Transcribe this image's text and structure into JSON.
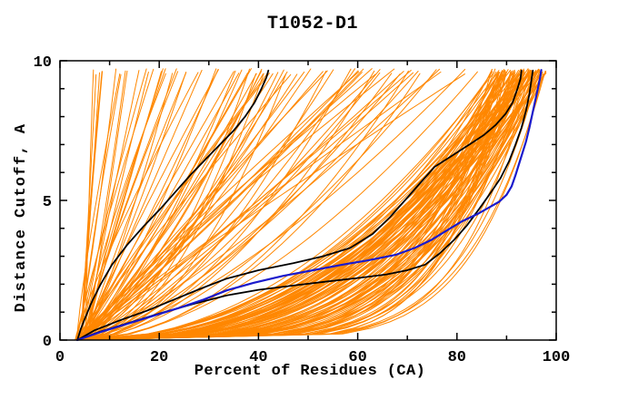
{
  "title": "T1052-D1",
  "chart_data": {
    "type": "line",
    "title": "T1052-D1",
    "xlabel": "Percent of Residues (CA)",
    "ylabel": "Distance Cutoff, A",
    "xlim": [
      0,
      100
    ],
    "ylim": [
      0,
      10
    ],
    "x_major_ticks": [
      0,
      20,
      40,
      60,
      80,
      100
    ],
    "x_minor_step": 10,
    "y_major_ticks": [
      0,
      5,
      10
    ],
    "y_minor_step": 1,
    "grid": false,
    "legend": "none",
    "colors": {
      "ensemble": "#ff8700",
      "highlight": "#000000",
      "best": "#1a1acc"
    },
    "series": [
      {
        "name": "model-ensemble",
        "kind": "ensemble",
        "color": "#ff8700",
        "width": 1,
        "count": 190,
        "seed": 11,
        "x_start_range": [
          3.0,
          5.5
        ],
        "y_top_range": [
          9.5,
          9.72
        ],
        "classes": [
          {
            "frac": 0.13,
            "x_end": [
              6.5,
              32
            ],
            "p": [
              0.75,
              1.3
            ]
          },
          {
            "frac": 0.24,
            "x_end": [
              35,
              85
            ],
            "p": [
              0.5,
              1.1
            ]
          },
          {
            "frac": 0.63,
            "x_end": [
              87,
              98
            ],
            "p": [
              0.14,
              0.5
            ]
          }
        ]
      },
      {
        "name": "black-model-1",
        "kind": "curve",
        "color": "#000000",
        "width": 1.8,
        "points": [
          [
            3.5,
            0
          ],
          [
            4.2,
            0.4
          ],
          [
            5.2,
            0.85
          ],
          [
            6.5,
            1.4
          ],
          [
            8.2,
            2.0
          ],
          [
            10.5,
            2.7
          ],
          [
            13.5,
            3.4
          ],
          [
            17,
            4.1
          ],
          [
            20.5,
            4.75
          ],
          [
            23.5,
            5.35
          ],
          [
            26.5,
            5.95
          ],
          [
            29.5,
            6.5
          ],
          [
            32.5,
            7.05
          ],
          [
            35,
            7.5
          ],
          [
            37.3,
            8.0
          ],
          [
            39.2,
            8.5
          ],
          [
            40.6,
            9.0
          ],
          [
            41.6,
            9.4
          ],
          [
            42,
            9.65
          ]
        ]
      },
      {
        "name": "black-model-2",
        "kind": "curve",
        "color": "#000000",
        "width": 1.8,
        "points": [
          [
            3.5,
            0
          ],
          [
            7,
            0.35
          ],
          [
            12,
            0.7
          ],
          [
            17.5,
            1.05
          ],
          [
            23,
            1.45
          ],
          [
            28.5,
            1.85
          ],
          [
            33.6,
            2.2
          ],
          [
            40,
            2.5
          ],
          [
            47,
            2.75
          ],
          [
            53,
            3.0
          ],
          [
            58.5,
            3.3
          ],
          [
            63,
            3.8
          ],
          [
            66.5,
            4.4
          ],
          [
            69.5,
            5.0
          ],
          [
            72.5,
            5.6
          ],
          [
            75.5,
            6.2
          ],
          [
            79,
            6.6
          ],
          [
            82.5,
            7.0
          ],
          [
            85.5,
            7.35
          ],
          [
            87.8,
            7.7
          ],
          [
            89.8,
            8.1
          ],
          [
            91.2,
            8.5
          ],
          [
            92.2,
            9.0
          ],
          [
            92.8,
            9.35
          ],
          [
            93,
            9.65
          ]
        ]
      },
      {
        "name": "black-model-3",
        "kind": "curve",
        "color": "#000000",
        "width": 1.8,
        "points": [
          [
            3.5,
            0
          ],
          [
            8,
            0.3
          ],
          [
            14,
            0.62
          ],
          [
            20,
            0.95
          ],
          [
            27,
            1.3
          ],
          [
            33.6,
            1.6
          ],
          [
            40,
            1.8
          ],
          [
            47,
            1.95
          ],
          [
            54,
            2.1
          ],
          [
            60,
            2.22
          ],
          [
            65.8,
            2.35
          ],
          [
            70,
            2.5
          ],
          [
            73.6,
            2.7
          ],
          [
            76.5,
            3.1
          ],
          [
            79.5,
            3.6
          ],
          [
            82,
            4.1
          ],
          [
            84.5,
            4.7
          ],
          [
            86.5,
            5.2
          ],
          [
            88.8,
            5.8
          ],
          [
            90.5,
            6.4
          ],
          [
            91.8,
            7.0
          ],
          [
            93,
            7.6
          ],
          [
            93.9,
            8.2
          ],
          [
            94.6,
            8.8
          ],
          [
            95,
            9.3
          ],
          [
            95.3,
            9.65
          ]
        ]
      },
      {
        "name": "blue-model",
        "kind": "curve",
        "color": "#1a1acc",
        "width": 2.2,
        "points": [
          [
            3.5,
            0
          ],
          [
            8,
            0.28
          ],
          [
            13,
            0.55
          ],
          [
            18.5,
            0.85
          ],
          [
            24,
            1.15
          ],
          [
            29,
            1.45
          ],
          [
            33.6,
            1.78
          ],
          [
            39,
            2.05
          ],
          [
            45,
            2.3
          ],
          [
            51,
            2.5
          ],
          [
            57,
            2.7
          ],
          [
            62,
            2.85
          ],
          [
            67.6,
            3.05
          ],
          [
            71.5,
            3.3
          ],
          [
            75,
            3.6
          ],
          [
            78.2,
            3.95
          ],
          [
            81,
            4.25
          ],
          [
            84,
            4.5
          ],
          [
            86.5,
            4.75
          ],
          [
            88.5,
            4.95
          ],
          [
            90,
            5.2
          ],
          [
            91,
            5.5
          ],
          [
            91.8,
            5.9
          ],
          [
            92.5,
            6.3
          ],
          [
            93.2,
            6.7
          ],
          [
            93.9,
            7.1
          ],
          [
            94.6,
            7.6
          ],
          [
            95.2,
            8.1
          ],
          [
            95.8,
            8.6
          ],
          [
            96.3,
            9.0
          ],
          [
            96.7,
            9.35
          ],
          [
            97,
            9.67
          ]
        ]
      }
    ]
  }
}
